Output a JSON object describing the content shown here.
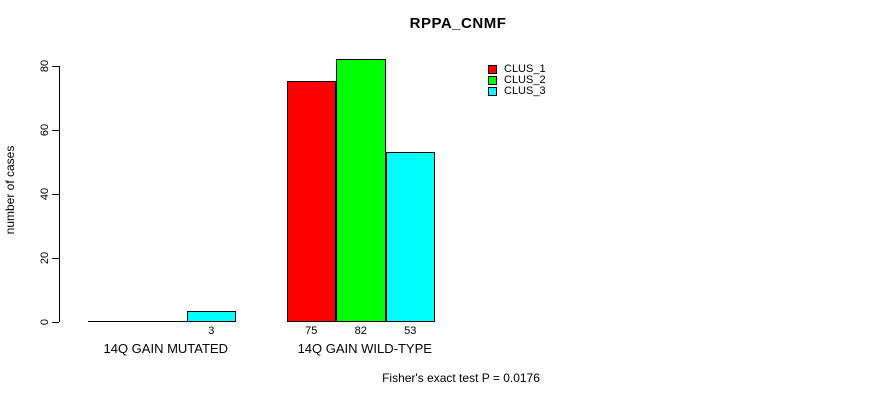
{
  "chart_data": {
    "type": "bar",
    "title": "RPPA_CNMF",
    "ylabel": "number of cases",
    "xlabel": "",
    "ylim": [
      0,
      80
    ],
    "yticks": [
      0,
      20,
      40,
      60,
      80
    ],
    "grid": false,
    "legend_position": "top-right",
    "categories": [
      "14Q GAIN MUTATED",
      "14Q GAIN WILD-TYPE"
    ],
    "series": [
      {
        "name": "CLUS_1",
        "color": "#ff0000",
        "values": [
          0,
          75
        ]
      },
      {
        "name": "CLUS_2",
        "color": "#00ff00",
        "values": [
          0,
          82
        ]
      },
      {
        "name": "CLUS_3",
        "color": "#00ffff",
        "values": [
          3,
          53
        ]
      }
    ],
    "bar_value_labels": [
      "3",
      "75",
      "82",
      "53"
    ],
    "annotation": "Fisher's exact test P = 0.0176"
  },
  "colors": {
    "background": "#ffffff",
    "axis": "#000000",
    "text": "#000000"
  }
}
